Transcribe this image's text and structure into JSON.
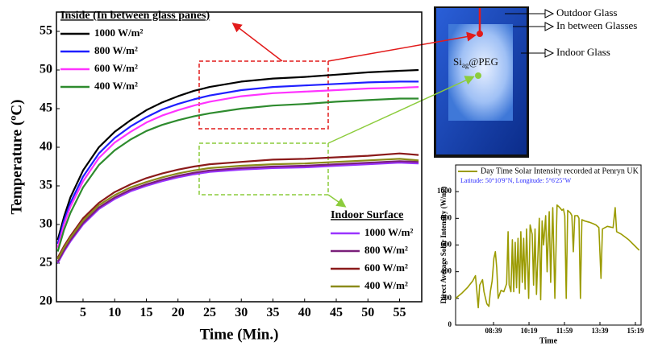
{
  "chart_data": [
    {
      "type": "line",
      "x_label": "Time (Min.)",
      "y_label": "Temperature (ºC)",
      "xlim": [
        0.8,
        58.5
      ],
      "ylim": [
        20,
        57.5
      ],
      "xticks": [
        5,
        10,
        15,
        20,
        25,
        30,
        35,
        40,
        45,
        50,
        55
      ],
      "yticks": [
        20,
        25,
        30,
        35,
        40,
        45,
        50,
        55
      ],
      "legend_titles": [
        "Inside (In between glass panes)",
        "Indoor Surface"
      ],
      "x": [
        1,
        2,
        3,
        5,
        7.5,
        10,
        12.5,
        15,
        17.5,
        20,
        22.5,
        25,
        30,
        35,
        40,
        45,
        50,
        55,
        58
      ],
      "series": [
        {
          "name": "1000 W/m²",
          "color": "#000000",
          "group": 0,
          "values": [
            28,
            31,
            33.5,
            37,
            40,
            42,
            43.5,
            44.8,
            45.8,
            46.6,
            47.3,
            47.8,
            48.5,
            48.9,
            49.1,
            49.4,
            49.7,
            49.9,
            50
          ]
        },
        {
          "name": "800 W/m²",
          "color": "#1f1fff",
          "group": 0,
          "values": [
            27.5,
            30.5,
            32.8,
            36.2,
            39.2,
            41.2,
            42.7,
            43.9,
            44.9,
            45.6,
            46.2,
            46.7,
            47.4,
            47.8,
            48,
            48.2,
            48.4,
            48.5,
            48.5
          ]
        },
        {
          "name": "600 W/m²",
          "color": "#ff33ff",
          "group": 0,
          "values": [
            27,
            30,
            32.3,
            35.6,
            38.6,
            40.6,
            42,
            43.2,
            44.1,
            44.8,
            45.4,
            45.9,
            46.6,
            47,
            47.2,
            47.4,
            47.6,
            47.7,
            47.8
          ]
        },
        {
          "name": "400 W/m²",
          "color": "#2e8b2e",
          "group": 0,
          "values": [
            26.5,
            29.3,
            31.5,
            34.8,
            37.7,
            39.6,
            41,
            42.1,
            42.9,
            43.5,
            44,
            44.4,
            45,
            45.4,
            45.6,
            45.9,
            46.1,
            46.3,
            46.3
          ]
        },
        {
          "name": "1000 W/m²",
          "color": "#9933ff",
          "group": 1,
          "values": [
            25,
            26.5,
            27.8,
            30,
            32,
            33.3,
            34.3,
            35,
            35.6,
            36.1,
            36.5,
            36.8,
            37.1,
            37.3,
            37.4,
            37.6,
            37.8,
            38,
            37.9
          ]
        },
        {
          "name": "800 W/m²",
          "color": "#7a1f7a",
          "group": 1,
          "values": [
            25.2,
            26.7,
            28,
            30.2,
            32.2,
            33.5,
            34.5,
            35.2,
            35.8,
            36.3,
            36.7,
            37,
            37.3,
            37.5,
            37.6,
            37.8,
            38,
            38.2,
            38.1
          ]
        },
        {
          "name": "600 W/m²",
          "color": "#8b1a1a",
          "group": 1,
          "values": [
            25.7,
            27.2,
            28.5,
            30.8,
            32.8,
            34.2,
            35.2,
            36,
            36.6,
            37.1,
            37.5,
            37.8,
            38.1,
            38.4,
            38.5,
            38.7,
            38.9,
            39.2,
            39
          ]
        },
        {
          "name": "400 W/m²",
          "color": "#8b8b1a",
          "group": 1,
          "values": [
            25.5,
            27,
            28.3,
            30.5,
            32.5,
            33.8,
            34.8,
            35.5,
            36.1,
            36.6,
            37,
            37.3,
            37.6,
            37.8,
            37.9,
            38.1,
            38.3,
            38.5,
            38.3
          ]
        }
      ]
    },
    {
      "type": "line",
      "x_label": "Time",
      "y_label": "Direct Average Solar Intensity (W/m²)",
      "subtitle": "Latitude: 50°10'9\"N, Longitude: 5°6'25\"W",
      "xlim": [
        412,
        935
      ],
      "ylim": [
        0,
        1200
      ],
      "xticks": [
        {
          "value": 519,
          "label": "08:39"
        },
        {
          "value": 619,
          "label": "10:19"
        },
        {
          "value": 719,
          "label": "11:59"
        },
        {
          "value": 819,
          "label": "13:39"
        },
        {
          "value": 919,
          "label": "15:19"
        }
      ],
      "yticks": [
        0,
        200,
        400,
        600,
        800,
        1000
      ],
      "x": [
        412,
        430,
        445,
        460,
        468,
        472,
        476,
        480,
        488,
        492,
        500,
        506,
        510,
        515,
        520,
        524,
        528,
        532,
        540,
        548,
        556,
        560,
        563,
        568,
        572,
        576,
        580,
        584,
        588,
        592,
        596,
        600,
        604,
        608,
        612,
        618,
        622,
        628,
        632,
        636,
        640,
        648,
        652,
        656,
        660,
        666,
        670,
        676,
        680,
        686,
        692,
        698,
        706,
        712,
        716,
        720,
        724,
        728,
        736,
        740,
        744,
        748,
        756,
        760,
        764,
        768,
        776,
        790,
        800,
        808,
        816,
        822,
        826,
        840,
        856,
        862,
        866,
        880,
        900,
        915,
        930
      ],
      "series": [
        {
          "name": "Day Time Solar Intensity recorded at Penryn UK",
          "color": "#9b9b00",
          "values": [
            200,
            240,
            280,
            330,
            370,
            250,
            130,
            300,
            340,
            250,
            160,
            140,
            250,
            330,
            500,
            550,
            430,
            200,
            260,
            250,
            310,
            700,
            300,
            250,
            640,
            250,
            620,
            280,
            650,
            240,
            700,
            320,
            650,
            270,
            720,
            200,
            750,
            680,
            300,
            720,
            230,
            800,
            190,
            780,
            600,
            820,
            400,
            850,
            320,
            880,
            200,
            900,
            880,
            860,
            870,
            820,
            200,
            860,
            840,
            820,
            550,
            820,
            820,
            800,
            200,
            790,
            780,
            770,
            760,
            750,
            730,
            350,
            720,
            740,
            730,
            880,
            700,
            680,
            640,
            600,
            560
          ]
        }
      ]
    }
  ],
  "photo": {
    "labels": [
      "Outdoor Glass",
      "In between Glasses",
      "Indoor Glass"
    ],
    "sample": {
      "base": "Si",
      "sub": "ag",
      "rest": "@PEG"
    }
  }
}
